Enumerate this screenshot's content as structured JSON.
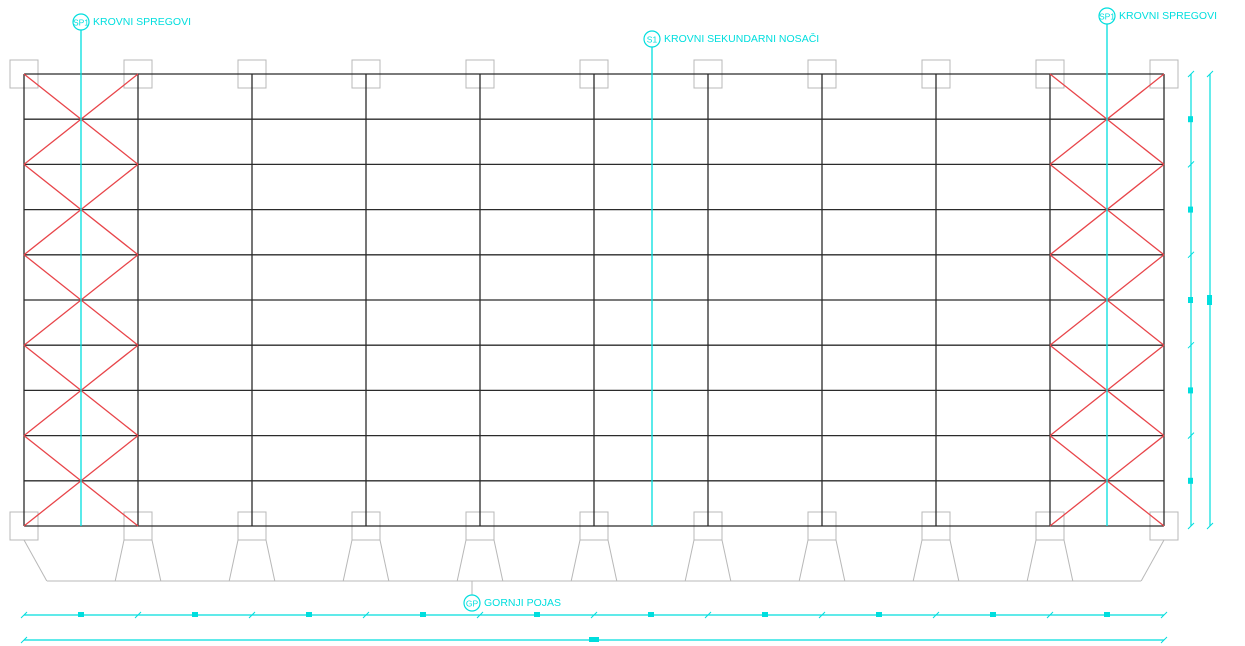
{
  "colors": {
    "frame": "#2b2b2b",
    "bracing": "#e8454a",
    "annotation": "#00dede",
    "column": "#b8b8b8",
    "background": "#ffffff"
  },
  "grid": {
    "bays": 10,
    "purlin_rows": 10,
    "braced_bays": [
      0,
      9
    ]
  },
  "labels": {
    "sp1_left": {
      "tag": "SP1",
      "text": "KROVNI SPREGOVI"
    },
    "s1": {
      "tag": "S1",
      "text": "KROVNI SEKUNDARNI NOSAČI"
    },
    "sp1_right": {
      "tag": "SP1",
      "text": "KROVNI SPREGOVI"
    },
    "gp": {
      "tag": "GP",
      "text": "GORNJI POJAS"
    }
  }
}
